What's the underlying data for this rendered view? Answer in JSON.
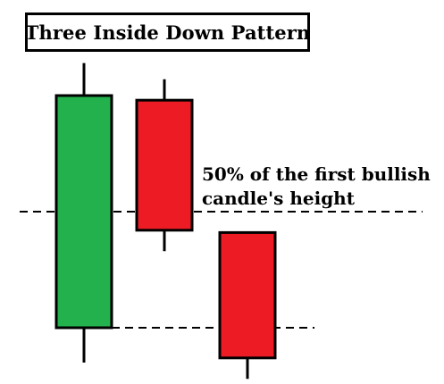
{
  "title": "Three Inside Down Pattern",
  "annotation": {
    "line1": "50% of the first bullish",
    "line2": "candle's height"
  },
  "colors": {
    "bullish": "#22b14c",
    "bearish": "#ed1c24",
    "outline": "#000000"
  },
  "candles": [
    {
      "name": "first-bullish-candle",
      "direction": "bullish",
      "open": 0,
      "close": 100,
      "high": 114,
      "low": -15
    },
    {
      "name": "second-bearish-candle",
      "direction": "bearish",
      "open": 98,
      "close": 42,
      "high": 107,
      "low": 33
    },
    {
      "name": "third-bearish-candle",
      "direction": "bearish",
      "open": 41,
      "close": -13,
      "high": 41,
      "low": -22
    }
  ],
  "reference_lines": [
    {
      "name": "midpoint-dashed-line",
      "level": 50
    },
    {
      "name": "first-open-dashed-line",
      "level": 0
    }
  ]
}
